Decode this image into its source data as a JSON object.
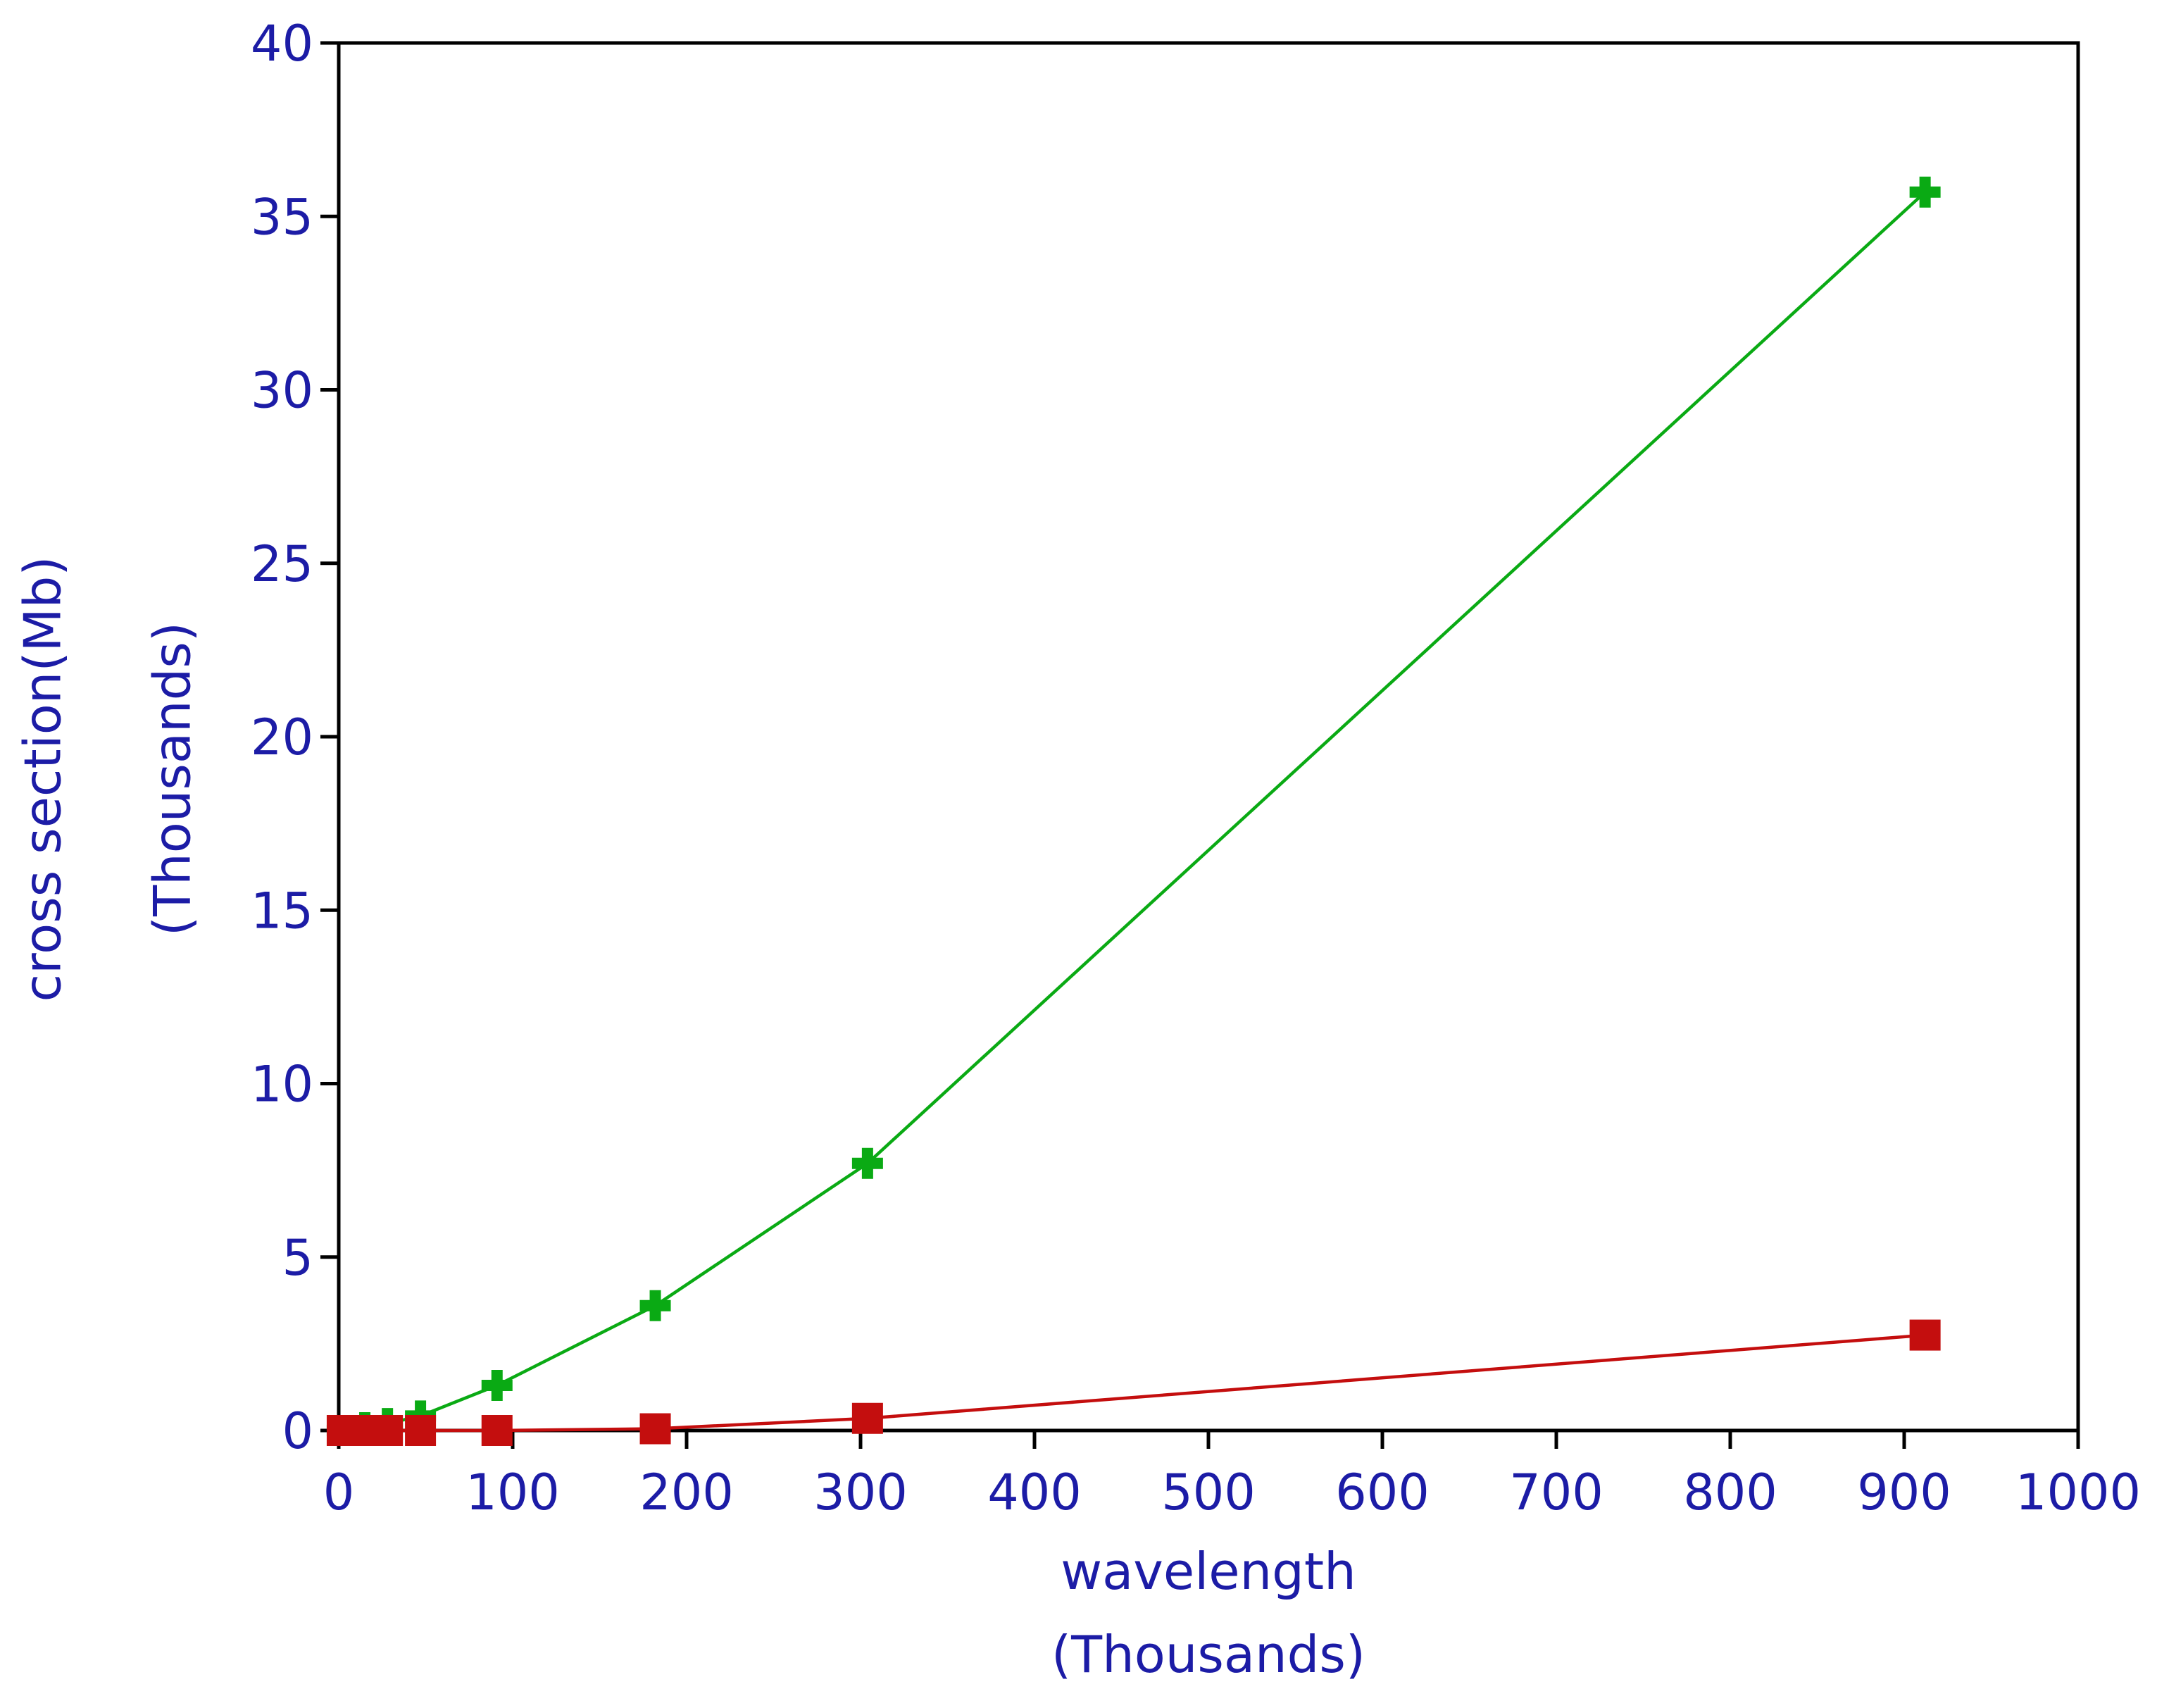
{
  "colors": {
    "text": "#1c1ca6",
    "axis": "#000000",
    "series_green": "#0aaa14",
    "series_red": "#c40e0e"
  },
  "chart_data": {
    "type": "line",
    "title": "",
    "xlabel_lines": [
      "wavelength",
      "(Thousands)"
    ],
    "ylabel_lines": [
      "cross section(Mb)",
      "(Thousands)"
    ],
    "xlim": [
      0,
      1000
    ],
    "ylim": [
      0,
      40
    ],
    "xticks": [
      0,
      100,
      200,
      300,
      400,
      500,
      600,
      700,
      800,
      900,
      1000
    ],
    "yticks": [
      0,
      5,
      10,
      15,
      20,
      25,
      30,
      35,
      40
    ],
    "xtick_labels": [
      "0",
      "100",
      "200",
      "300",
      "400",
      "500",
      "600",
      "700",
      "800",
      "900",
      "1000"
    ],
    "ytick_labels": [
      "0",
      "5",
      "10",
      "15",
      "20",
      "25",
      "30",
      "35",
      "40"
    ],
    "grid": false,
    "legend": "none",
    "series": [
      {
        "color": "#0aaa14",
        "marker": "cross",
        "x": [
          2,
          15,
          28,
          47,
          91,
          182,
          304,
          912
        ],
        "y": [
          0.0,
          0.08,
          0.2,
          0.42,
          1.3,
          3.6,
          7.7,
          35.7
        ]
      },
      {
        "color": "#c40e0e",
        "marker": "square",
        "x": [
          2,
          15,
          28,
          47,
          91,
          182,
          304,
          912
        ],
        "y": [
          0.0,
          0.0,
          0.0,
          0.0,
          0.0,
          0.05,
          0.35,
          2.75
        ]
      }
    ]
  }
}
